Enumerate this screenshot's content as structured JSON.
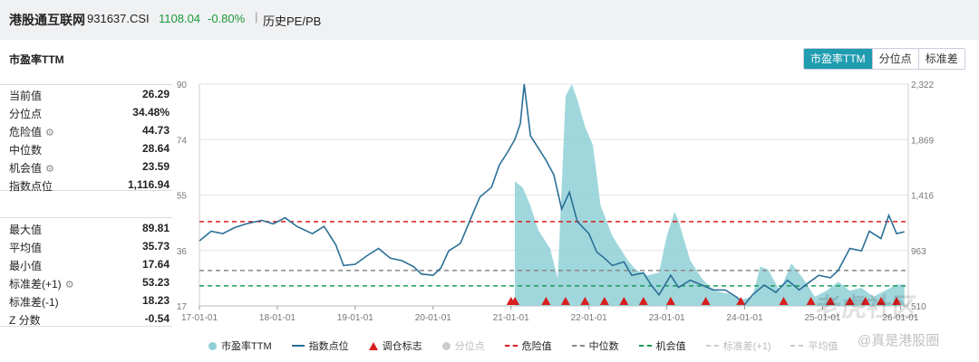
{
  "header": {
    "title": "港股通互联网",
    "code": "931637.CSI",
    "price": "1108.04",
    "change_pct": "-0.80%",
    "separator": "|",
    "history_link": "历史PE/PB"
  },
  "section_title": "市盈率TTM",
  "tabs": [
    {
      "label": "市盈率TTM",
      "active": true
    },
    {
      "label": "分位点",
      "active": false
    },
    {
      "label": "标准差",
      "active": false
    }
  ],
  "stats_current": [
    {
      "label": "当前值",
      "value": "26.29",
      "gear": false
    },
    {
      "label": "分位点",
      "value": "34.48%",
      "gear": false
    },
    {
      "label": "危险值",
      "value": "44.73",
      "gear": true
    },
    {
      "label": "中位数",
      "value": "28.64",
      "gear": false
    },
    {
      "label": "机会值",
      "value": "23.59",
      "gear": true
    },
    {
      "label": "指数点位",
      "value": "1,116.94",
      "gear": false
    }
  ],
  "stats_history": [
    {
      "label": "最大值",
      "value": "89.81",
      "gear": false
    },
    {
      "label": "平均值",
      "value": "35.73",
      "gear": false
    },
    {
      "label": "最小值",
      "value": "17.64",
      "gear": false
    },
    {
      "label": "标准差(+1)",
      "value": "53.23",
      "gear": true
    },
    {
      "label": "标准差(-1)",
      "value": "18.23",
      "gear": false
    },
    {
      "label": "Z 分数",
      "value": "-0.54",
      "gear": false
    }
  ],
  "chart_data": {
    "type": "line",
    "x_ticks": [
      "17-01-01",
      "18-01-01",
      "19-01-01",
      "20-01-01",
      "21-01-01",
      "22-01-01",
      "23-01-01",
      "24-01-01",
      "25-01-01",
      "26-01-01"
    ],
    "y_left_ticks": [
      "90",
      "74",
      "55",
      "36",
      "17"
    ],
    "y_left_range": [
      17,
      90
    ],
    "y_right_ticks": [
      "2,322",
      "1,869",
      "1,416",
      "963",
      "510"
    ],
    "y_right_range": [
      510,
      2322
    ],
    "x_range": [
      2017.0,
      2026.1
    ],
    "danger_value": 44.73,
    "median_value": 28.64,
    "opportunity_value": 23.59,
    "colors": {
      "pe_area": "#8fd0d6",
      "index_line": "#2a6f97",
      "danger": "#d81e1e",
      "median": "#888888",
      "opportunity": "#1a9a5a",
      "marker": "#d81e1e",
      "grid": "#e3e3e3"
    },
    "series": [
      {
        "name": "指数点位",
        "axis": "right",
        "x": [
          2017.0,
          2017.15,
          2017.3,
          2017.45,
          2017.6,
          2017.8,
          2017.95,
          2018.1,
          2018.25,
          2018.45,
          2018.6,
          2018.75,
          2018.85,
          2019.0,
          2019.15,
          2019.3,
          2019.45,
          2019.6,
          2019.75,
          2019.85,
          2020.0,
          2020.1,
          2020.2,
          2020.35,
          2020.5,
          2020.6,
          2020.75,
          2020.85,
          2020.95,
          2021.05,
          2021.12,
          2021.17,
          2021.25,
          2021.35,
          2021.45,
          2021.55,
          2021.65,
          2021.75,
          2021.85,
          2022.0,
          2022.1,
          2022.2,
          2022.3,
          2022.45,
          2022.55,
          2022.7,
          2022.8,
          2022.9,
          2023.05,
          2023.15,
          2023.3,
          2023.45,
          2023.6,
          2023.75,
          2023.9,
          2024.0,
          2024.1,
          2024.25,
          2024.4,
          2024.55,
          2024.7,
          2024.8,
          2024.95,
          2025.1,
          2025.2,
          2025.35,
          2025.5,
          2025.6,
          2025.75,
          2025.85,
          2025.95,
          2026.05
        ],
        "values": [
          1040,
          1120,
          1100,
          1150,
          1180,
          1210,
          1180,
          1230,
          1160,
          1100,
          1160,
          1010,
          840,
          850,
          920,
          980,
          900,
          880,
          830,
          770,
          760,
          820,
          960,
          1020,
          1250,
          1400,
          1480,
          1660,
          1760,
          1870,
          2000,
          2322,
          1900,
          1800,
          1700,
          1580,
          1300,
          1440,
          1200,
          1100,
          950,
          900,
          840,
          870,
          760,
          780,
          680,
          600,
          760,
          660,
          720,
          680,
          640,
          640,
          580,
          520,
          600,
          680,
          620,
          720,
          640,
          690,
          760,
          740,
          800,
          980,
          960,
          1120,
          1060,
          1250,
          1100,
          1116
        ]
      },
      {
        "name": "市盈率TTM",
        "axis": "left",
        "type": "area",
        "x": [
          2021.05,
          2021.15,
          2021.25,
          2021.35,
          2021.5,
          2021.6,
          2021.7,
          2021.78,
          2021.85,
          2021.95,
          2022.05,
          2022.15,
          2022.3,
          2022.4,
          2022.5,
          2022.6,
          2022.75,
          2022.9,
          2023.0,
          2023.1,
          2023.15,
          2023.3,
          2023.45,
          2023.6,
          2023.8,
          2023.95,
          2024.1,
          2024.2,
          2024.3,
          2024.45,
          2024.6,
          2024.75,
          2024.9,
          2025.05,
          2025.2,
          2025.35,
          2025.5,
          2025.65,
          2025.8,
          2025.95,
          2026.05
        ],
        "values": [
          58,
          56,
          50,
          42,
          36,
          26,
          86,
          90,
          85,
          76,
          70,
          50,
          40,
          36,
          32,
          29,
          27,
          28,
          40,
          48,
          45,
          32,
          26,
          22,
          21,
          19,
          20,
          30,
          29,
          22,
          31,
          26,
          20,
          22,
          25,
          22,
          23,
          20,
          22,
          24,
          24
        ]
      }
    ],
    "markers_x": [
      2021.0,
      2021.05,
      2021.45,
      2021.7,
      2021.95,
      2022.2,
      2022.45,
      2022.7,
      2023.05,
      2023.5,
      2023.95,
      2024.5,
      2024.85,
      2025.1,
      2025.35,
      2025.55,
      2025.75,
      2025.95
    ]
  },
  "legend": [
    {
      "label": "市盈率TTM",
      "kind": "dot",
      "color": "#8fd0d6",
      "faded": false
    },
    {
      "label": "指数点位",
      "kind": "line",
      "color": "#2a6f97",
      "faded": false
    },
    {
      "label": "调仓标志",
      "kind": "triangle",
      "color": "#d81e1e",
      "faded": false
    },
    {
      "label": "分位点",
      "kind": "dot",
      "color": "#cccccc",
      "faded": true
    },
    {
      "label": "危险值",
      "kind": "dash",
      "color": "#d81e1e",
      "faded": false
    },
    {
      "label": "中位数",
      "kind": "dash",
      "color": "#888888",
      "faded": false
    },
    {
      "label": "机会值",
      "kind": "dash",
      "color": "#1a9a5a",
      "faded": false
    },
    {
      "label": "标准差(+1)",
      "kind": "dash",
      "color": "#cccccc",
      "faded": true
    },
    {
      "label": "平均值",
      "kind": "dash",
      "color": "#cccccc",
      "faded": true
    }
  ],
  "watermark": {
    "big": "老虎社区",
    "small": "@真是港股圈"
  }
}
